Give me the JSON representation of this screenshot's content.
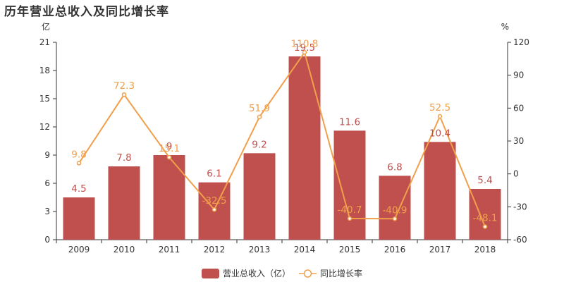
{
  "title": "历年营业总收入及同比增长率",
  "chart_data": {
    "type": "bar",
    "categories": [
      "2009",
      "2010",
      "2011",
      "2012",
      "2013",
      "2014",
      "2015",
      "2016",
      "2017",
      "2018"
    ],
    "series": [
      {
        "name": "营业总收入（亿）",
        "type": "bar",
        "axis": "left",
        "values": [
          4.5,
          7.8,
          9,
          6.1,
          9.2,
          19.5,
          11.6,
          6.8,
          10.4,
          5.4
        ],
        "labels": [
          "4.5",
          "7.8",
          "9",
          "6.1",
          "9.2",
          "19.5",
          "11.6",
          "6.8",
          "10.4",
          "5.4"
        ]
      },
      {
        "name": "同比增长率",
        "type": "line",
        "axis": "right",
        "values": [
          9.8,
          72.3,
          15.1,
          -32.5,
          51.9,
          110.8,
          -40.7,
          -40.9,
          52.5,
          -48.1
        ],
        "labels": [
          "9.8",
          "72.3",
          "15.1",
          "-32.5",
          "51.9",
          "110.8",
          "-40.7",
          "-40.9",
          "52.5",
          "-48.1"
        ]
      }
    ],
    "y_left": {
      "unit": "亿",
      "ylim": [
        0,
        21
      ],
      "ticks": [
        0,
        3,
        6,
        9,
        12,
        15,
        18,
        21
      ]
    },
    "y_right": {
      "unit": "%",
      "ylim": [
        -60,
        120
      ],
      "ticks": [
        -60,
        -30,
        0,
        30,
        60,
        90,
        120
      ]
    },
    "grid": false,
    "legend_position": "bottom-center",
    "colors": {
      "bar": "#c0504d",
      "line": "#f0a04b",
      "axis": "#333333"
    }
  }
}
